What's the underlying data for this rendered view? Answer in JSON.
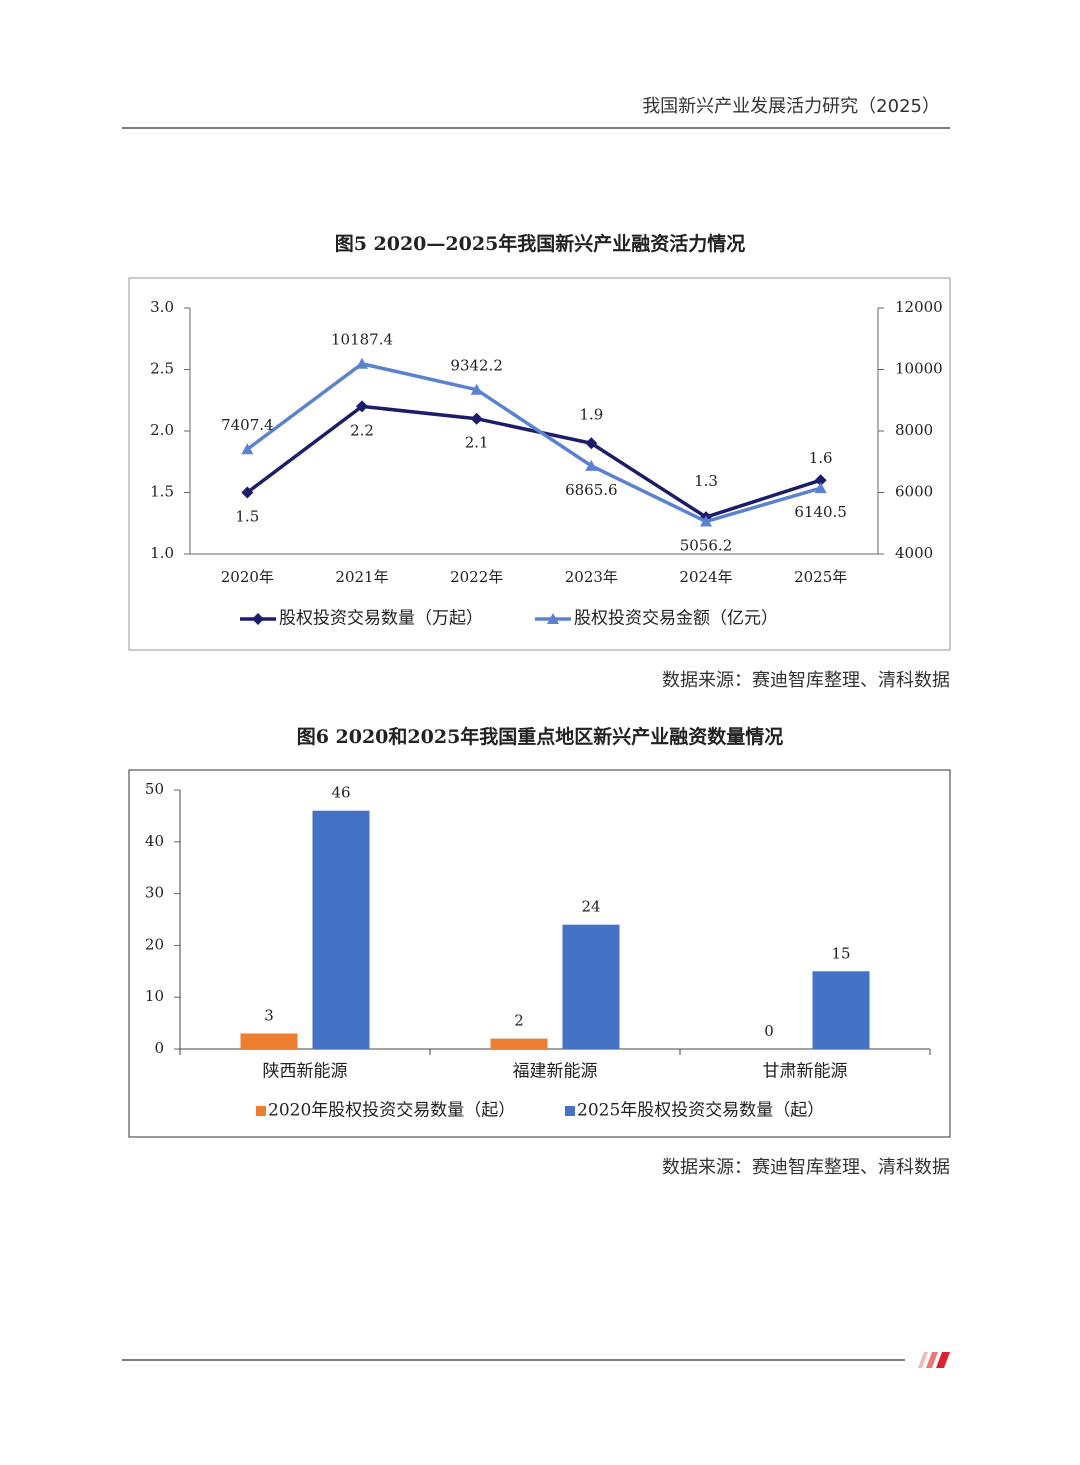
{
  "header": {
    "title": "我国新兴产业发展活力研究（2025）"
  },
  "chart_data": [
    {
      "type": "line",
      "title": "图5 2020—2025年我国新兴产业融资活力情况",
      "categories": [
        "2020年",
        "2021年",
        "2022年",
        "2023年",
        "2024年",
        "2025年"
      ],
      "series": [
        {
          "name": "股权投资交易数量（万起）",
          "color": "#1c1c6b",
          "marker": "diamond",
          "values": [
            1.5,
            2.2,
            2.1,
            1.9,
            1.3,
            1.6
          ]
        },
        {
          "name": "股权投资交易金额（亿元）",
          "color": "#5b82cf",
          "marker": "triangle",
          "axis": "y2",
          "values": [
            7407.4,
            10187.4,
            9342.2,
            6865.6,
            5056.2,
            6140.5
          ]
        }
      ],
      "ylim": [
        1.0,
        3.0
      ],
      "yticks": [
        {
          "value": 1,
          "label": "1.0"
        },
        1.5,
        {
          "value": 2,
          "label": "2.0"
        },
        2.5,
        {
          "value": 3,
          "label": "3.0"
        }
      ],
      "y2lim": [
        4000,
        12000
      ],
      "y2ticks": [
        4000,
        6000,
        8000,
        10000,
        12000
      ],
      "legend": "bottom"
    },
    {
      "type": "bar",
      "title": "图6 2020和2025年我国重点地区新兴产业融资数量情况",
      "categories": [
        "陕西新能源",
        "福建新能源",
        "甘肃新能源"
      ],
      "series": [
        {
          "name": "2020年股权投资交易数量（起）",
          "color": "#ed7d31",
          "values": [
            3,
            2,
            0
          ]
        },
        {
          "name": "2025年股权投资交易数量（起）",
          "color": "#4472c4",
          "values": [
            46,
            24,
            15
          ]
        }
      ],
      "ylim": [
        0,
        50
      ],
      "yticks": [
        0,
        10,
        20,
        30,
        40,
        50
      ],
      "legend": "bottom"
    }
  ],
  "sources": [
    "数据来源：赛迪智库整理、清科数据",
    "数据来源：赛迪智库整理、清科数据"
  ]
}
